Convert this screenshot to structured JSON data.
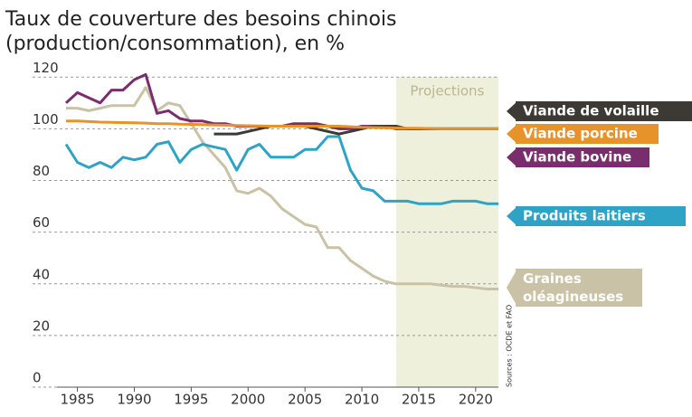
{
  "chart_data": {
    "type": "line",
    "title": "Taux de couverture des besoins chinois",
    "subtitle": "(production/consommation), en %",
    "annotation": "Projections",
    "projection_start": 2013,
    "source": "Sources : OCDE et FAO",
    "x": [
      1984,
      1985,
      1986,
      1987,
      1988,
      1989,
      1990,
      1991,
      1992,
      1993,
      1994,
      1995,
      1996,
      1997,
      1998,
      1999,
      2000,
      2001,
      2002,
      2003,
      2004,
      2005,
      2006,
      2007,
      2008,
      2009,
      2010,
      2011,
      2012,
      2013,
      2014,
      2015,
      2016,
      2017,
      2018,
      2019,
      2020,
      2021,
      2022
    ],
    "xlim": [
      1984,
      2022
    ],
    "xticks": [
      1985,
      1990,
      1995,
      2000,
      2005,
      2010,
      2015,
      2020
    ],
    "ylim": [
      0,
      125
    ],
    "yticks": [
      0,
      20,
      40,
      60,
      80,
      100,
      120
    ],
    "grid": true,
    "series": [
      {
        "name": "Graines oléagineuses",
        "color": "#c9c2a6",
        "values": [
          108,
          108,
          107,
          108,
          109,
          109,
          109,
          116,
          107,
          110,
          109,
          102,
          95,
          90,
          85,
          76,
          75,
          77,
          74,
          69,
          66,
          63,
          62,
          54,
          54,
          49,
          46,
          43,
          41,
          40,
          40,
          40,
          40,
          39.5,
          39,
          39,
          38.5,
          38,
          38
        ]
      },
      {
        "name": "Produits laitiers",
        "color": "#2ea3c6",
        "values": [
          94,
          87,
          85,
          87,
          85,
          89,
          88,
          89,
          94,
          95,
          87,
          92,
          94,
          93,
          92,
          84,
          92,
          94,
          89,
          89,
          89,
          92,
          92,
          97,
          97,
          84,
          77,
          76,
          72,
          72,
          72,
          71,
          71,
          71,
          72,
          72,
          72,
          71,
          71
        ]
      },
      {
        "name": "Viande bovine",
        "color": "#7a2d6c",
        "values": [
          110,
          114,
          112,
          110,
          115,
          115,
          119,
          121,
          106,
          107,
          104,
          103,
          103,
          102,
          102,
          101,
          101,
          101,
          101,
          101,
          102,
          102,
          102,
          101,
          100,
          100,
          101,
          101,
          101,
          100,
          100,
          100,
          100,
          100,
          100,
          100,
          100,
          100,
          100
        ]
      },
      {
        "name": "Viande de volaille",
        "color": "#3d3935",
        "values": [
          null,
          null,
          null,
          null,
          null,
          null,
          null,
          null,
          null,
          null,
          null,
          null,
          null,
          98,
          98,
          98,
          99,
          100,
          101,
          101,
          101,
          101,
          100,
          99,
          98,
          99,
          100,
          101,
          101,
          101,
          100,
          100,
          100,
          100,
          100,
          100,
          100,
          100,
          100
        ]
      },
      {
        "name": "Viande porcine",
        "color": "#e8922a",
        "values": [
          103,
          103,
          102.8,
          102.6,
          102.5,
          102.4,
          102.3,
          102.2,
          102,
          102,
          101.8,
          101.7,
          101.6,
          101.5,
          101.4,
          101.3,
          101.2,
          101.1,
          101,
          101,
          101,
          101,
          101,
          101,
          101,
          100.8,
          100.6,
          100.5,
          100.4,
          100.3,
          100.2,
          100.2,
          100.1,
          100,
          100,
          100,
          100,
          100,
          100
        ]
      }
    ]
  }
}
